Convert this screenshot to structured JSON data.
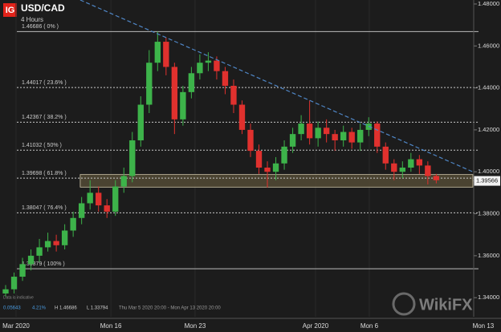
{
  "chart_data": {
    "type": "candlestick",
    "title": "USD/CAD",
    "subtitle": "4 Hours",
    "logo": "IG",
    "x": [
      2,
      5,
      8,
      11,
      14,
      17,
      20,
      23,
      26,
      29,
      32,
      35,
      38,
      41,
      44,
      47,
      50,
      53,
      56,
      59,
      62,
      65,
      68,
      71,
      74,
      77,
      80,
      83,
      86,
      89,
      92,
      95,
      98,
      101,
      104,
      107,
      110,
      113,
      116,
      119,
      122,
      125,
      128,
      131,
      134,
      137,
      140,
      143,
      146,
      149,
      152,
      155
    ],
    "open": [
      1.342,
      1.344,
      1.35,
      1.356,
      1.36,
      1.364,
      1.367,
      1.365,
      1.372,
      1.378,
      1.385,
      1.39,
      1.384,
      1.381,
      1.393,
      1.398,
      1.415,
      1.432,
      1.452,
      1.462,
      1.45,
      1.425,
      1.438,
      1.447,
      1.452,
      1.453,
      1.448,
      1.441,
      1.432,
      1.42,
      1.41,
      1.402,
      1.4,
      1.404,
      1.412,
      1.418,
      1.423,
      1.416,
      1.421,
      1.418,
      1.415,
      1.419,
      1.414,
      1.42,
      1.423,
      1.412,
      1.404,
      1.4,
      1.402,
      1.406,
      1.403,
      1.398
    ],
    "high": [
      1.346,
      1.352,
      1.359,
      1.363,
      1.368,
      1.371,
      1.37,
      1.375,
      1.381,
      1.388,
      1.396,
      1.393,
      1.387,
      1.396,
      1.402,
      1.419,
      1.436,
      1.458,
      1.46686,
      1.464,
      1.452,
      1.441,
      1.45,
      1.456,
      1.457,
      1.455,
      1.45,
      1.444,
      1.434,
      1.423,
      1.413,
      1.405,
      1.407,
      1.415,
      1.421,
      1.427,
      1.434,
      1.424,
      1.425,
      1.42,
      1.422,
      1.421,
      1.423,
      1.426,
      1.424,
      1.414,
      1.406,
      1.405,
      1.409,
      1.408,
      1.405,
      1.399
    ],
    "low": [
      1.3405,
      1.342,
      1.348,
      1.353,
      1.357,
      1.362,
      1.362,
      1.363,
      1.369,
      1.375,
      1.382,
      1.381,
      1.378,
      1.379,
      1.39,
      1.395,
      1.412,
      1.428,
      1.448,
      1.446,
      1.418,
      1.422,
      1.435,
      1.444,
      1.448,
      1.444,
      1.437,
      1.428,
      1.418,
      1.407,
      1.399,
      1.3925,
      1.396,
      1.401,
      1.409,
      1.415,
      1.413,
      1.412,
      1.414,
      1.41,
      1.412,
      1.411,
      1.41,
      1.417,
      1.409,
      1.401,
      1.396,
      1.397,
      1.4,
      1.399,
      1.394,
      1.3945
    ],
    "close": [
      1.344,
      1.35,
      1.356,
      1.36,
      1.364,
      1.367,
      1.365,
      1.372,
      1.378,
      1.385,
      1.39,
      1.384,
      1.381,
      1.393,
      1.398,
      1.415,
      1.432,
      1.452,
      1.462,
      1.45,
      1.425,
      1.438,
      1.447,
      1.452,
      1.453,
      1.448,
      1.441,
      1.432,
      1.42,
      1.41,
      1.402,
      1.4,
      1.404,
      1.412,
      1.418,
      1.423,
      1.416,
      1.421,
      1.418,
      1.415,
      1.419,
      1.414,
      1.42,
      1.423,
      1.412,
      1.404,
      1.4,
      1.402,
      1.406,
      1.403,
      1.398,
      1.396
    ],
    "up_color": "#3db34a",
    "down_color": "#e0312e",
    "xlim": [
      0,
      178
    ],
    "xticks": [
      {
        "value": 5.7,
        "label": "Mar 2020"
      },
      {
        "value": 39.4,
        "label": "Mon 16"
      },
      {
        "value": 69.3,
        "label": "Mon 23"
      },
      {
        "value": 112.1,
        "label": "Apr 2020"
      },
      {
        "value": 131.2,
        "label": "Mon 6"
      },
      {
        "value": 171.7,
        "label": "Mon 13"
      }
    ],
    "ylim": [
      1.3309,
      1.4819
    ],
    "yticks": [
      {
        "value": 1.48,
        "label": "1.48000"
      },
      {
        "value": 1.46,
        "label": "1.46000"
      },
      {
        "value": 1.44,
        "label": "1.44000"
      },
      {
        "value": 1.42,
        "label": "1.42000"
      },
      {
        "value": 1.4,
        "label": "1.40000"
      },
      {
        "value": 1.38,
        "label": "1.38000"
      },
      {
        "value": 1.36,
        "label": "1.36000"
      },
      {
        "value": 1.34,
        "label": "1.34000"
      }
    ],
    "levels": [
      {
        "value": 1.46686,
        "label": "1.46686 ( 0% )"
      },
      {
        "value": 1.44017,
        "label": "1.44017 ( 23.6% )"
      },
      {
        "value": 1.42367,
        "label": "1.42367 ( 38.2% )"
      },
      {
        "value": 1.41032,
        "label": "1.41032 ( 50% )"
      },
      {
        "value": 1.39698,
        "label": "1.39698 ( 61.8% )"
      },
      {
        "value": 1.38047,
        "label": "1.38047 ( 76.4% )"
      },
      {
        "value": 1.35379,
        "label": "1.35379 ( 100% )"
      }
    ],
    "levels_x": [
      6,
      170
    ],
    "trendline": {
      "x": [
        28.5,
        168
      ],
      "y": [
        1.4819,
        1.4
      ]
    },
    "zone": {
      "x": [
        28.5,
        168
      ],
      "y": [
        1.3927,
        1.3987
      ]
    },
    "last_price": {
      "value": 1.39566,
      "label": "1.39566"
    },
    "info": [
      "0.05643",
      "4.21%",
      "H 1.46686",
      "L 1.33794",
      "Thu Mar 5 2020 20:00 - Mon Apr 13 2020 20:00"
    ],
    "note": "Data is indicative",
    "watermark": "WikiFX"
  }
}
